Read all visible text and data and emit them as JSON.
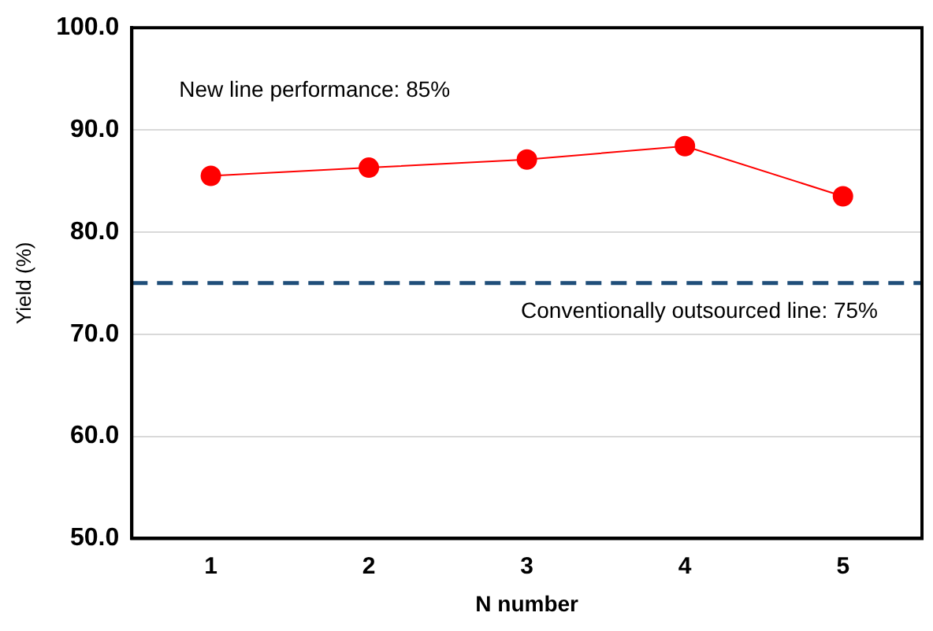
{
  "chart_data": {
    "type": "line",
    "xlabel": "N number",
    "ylabel": "Yield (%)",
    "categories": [
      "1",
      "2",
      "3",
      "4",
      "5"
    ],
    "series": [
      {
        "color": "#ff0000",
        "values": [
          85.5,
          86.3,
          87.1,
          88.4,
          83.5
        ]
      }
    ],
    "ylim": [
      50,
      100
    ],
    "yticks": [
      {
        "value": 50,
        "label": "50.0"
      },
      {
        "value": 60,
        "label": "60.0"
      },
      {
        "value": 70,
        "label": "70.0"
      },
      {
        "value": 80,
        "label": "80.0"
      },
      {
        "value": 90,
        "label": "90.0"
      },
      {
        "value": 100,
        "label": "100.0"
      }
    ],
    "grid": "y",
    "legend": false,
    "marker": "circle",
    "line_style": "solid",
    "ref_lines": [
      {
        "axis": "y",
        "value": 75,
        "label": "Conventionally outsourced line: 75%",
        "color": "#1f4e79",
        "line_style": "dashed"
      }
    ],
    "annotations": [
      "New line performance: 85%"
    ]
  }
}
